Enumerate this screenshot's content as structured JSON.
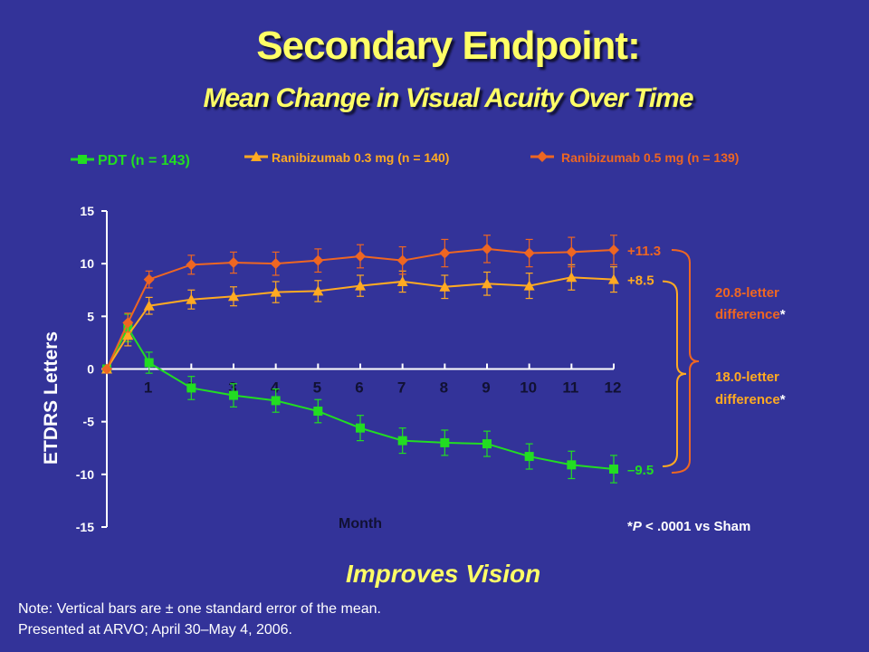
{
  "slide": {
    "title": "Secondary Endpoint:",
    "subtitle": "Mean Change in Visual Acuity Over Time",
    "tagline": "Improves Vision",
    "note": "Note: Vertical bars are ± one standard error of the mean.",
    "source": "Presented at ARVO; April 30–May 4, 2006."
  },
  "chart_data": {
    "type": "line",
    "ylabel": "ETDRS Letters",
    "xlabel": "Month",
    "ylim": [
      -15,
      15
    ],
    "xlim": [
      0,
      12
    ],
    "y_ticks": [
      "15",
      "10",
      "5",
      "0",
      "-5",
      "-10",
      "-15"
    ],
    "x_ticks": [
      "1",
      "2",
      "3",
      "4",
      "5",
      "6",
      "7",
      "8",
      "9",
      "10",
      "11",
      "12"
    ],
    "x": [
      0,
      0.5,
      1,
      2,
      3,
      4,
      5,
      6,
      7,
      8,
      9,
      10,
      11,
      12
    ],
    "legend_position": "top",
    "series": [
      {
        "name": "PDT (n = 143)",
        "color": "#22dd22",
        "marker": "square",
        "values": [
          0,
          3.9,
          0.6,
          -1.8,
          -2.5,
          -3.0,
          -4.0,
          -5.6,
          -6.8,
          -7.0,
          -7.1,
          -8.3,
          -9.1,
          -9.5
        ],
        "error": [
          0,
          1.3,
          1.0,
          1.1,
          1.1,
          1.1,
          1.1,
          1.2,
          1.2,
          1.2,
          1.2,
          1.2,
          1.3,
          1.3
        ],
        "end_label": "–9.5"
      },
      {
        "name": "Ranibizumab 0.3 mg (n = 140)",
        "color": "#ffaa22",
        "marker": "triangle",
        "values": [
          0,
          3.2,
          6.0,
          6.6,
          6.9,
          7.3,
          7.4,
          7.9,
          8.3,
          7.8,
          8.1,
          7.9,
          8.7,
          8.5
        ],
        "error": [
          0,
          1.0,
          0.8,
          0.9,
          0.9,
          1.0,
          1.0,
          1.0,
          1.0,
          1.1,
          1.1,
          1.2,
          1.2,
          1.2
        ],
        "end_label": "+8.5"
      },
      {
        "name": "Ranibizumab 0.5 mg (n = 139)",
        "color": "#ee6622",
        "marker": "diamond",
        "values": [
          0,
          4.4,
          8.5,
          9.9,
          10.1,
          10.0,
          10.3,
          10.7,
          10.3,
          11.0,
          11.4,
          11.0,
          11.1,
          11.3
        ],
        "error": [
          0,
          0.9,
          0.8,
          0.9,
          1.0,
          1.1,
          1.1,
          1.1,
          1.3,
          1.3,
          1.3,
          1.3,
          1.4,
          1.4
        ],
        "end_label": "+11.3"
      }
    ],
    "annotations": {
      "diff_top_line1": "20.8-letter",
      "diff_top_line2": "difference",
      "diff_bottom_line1": "18.0-letter",
      "diff_bottom_line2": "difference",
      "asterisk": "*",
      "significance_prefix": "*",
      "significance_p": "P",
      "significance_rest": " < .0001 vs Sham"
    }
  },
  "colors": {
    "background": "#333399",
    "title": "#ffff66",
    "axis": "#ffffff",
    "annotation_top": "#ee6622",
    "annotation_bottom": "#ffaa22"
  }
}
